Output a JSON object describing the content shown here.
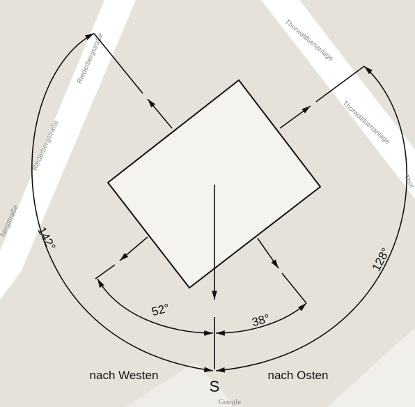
{
  "streets": [
    "Riederbergstraße",
    "Riederbergstraße",
    "bergstraße",
    "Thorwaldsenanlage",
    "Thorwaldsenanlage",
    "Thor"
  ],
  "angles": {
    "west_total": "142°",
    "west": "52°",
    "east": "38°",
    "east_total": "128°"
  },
  "directions": {
    "west": "nach Westen",
    "east": "nach Osten",
    "south": "S"
  },
  "attribution": "Google"
}
